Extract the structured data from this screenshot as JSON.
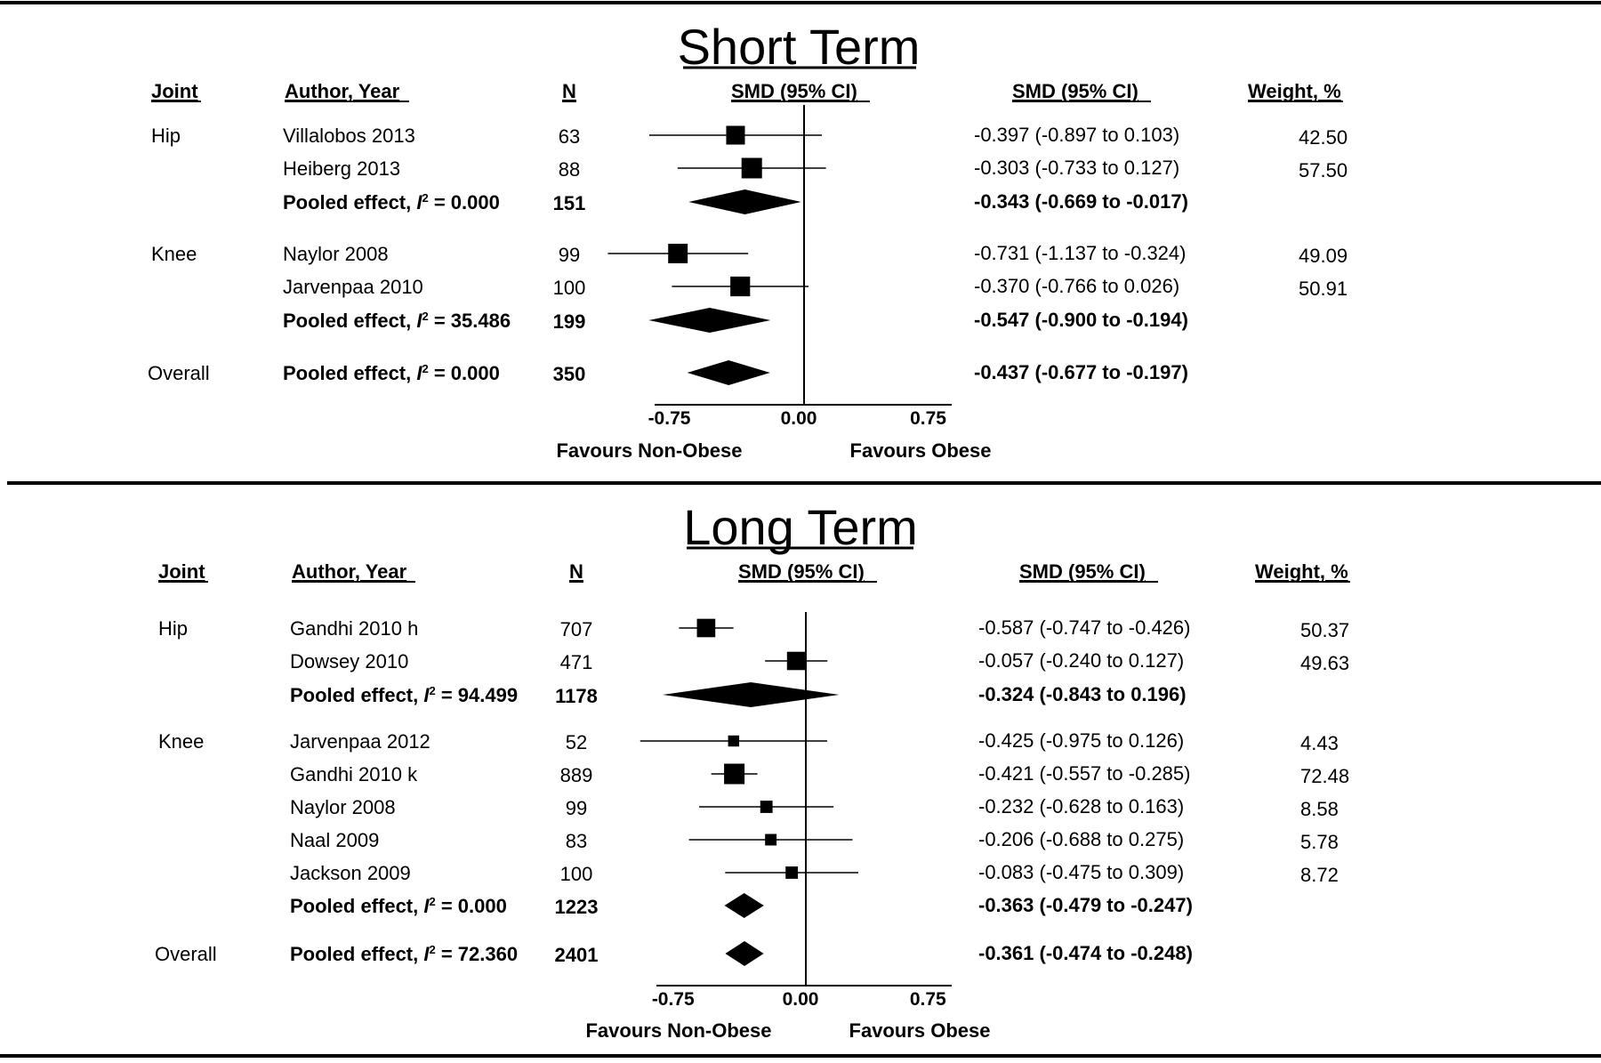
{
  "chart_data": [
    {
      "type": "forest",
      "title": "Short Term",
      "columns": {
        "joint": "Joint",
        "author": "Author, Year",
        "n": "N",
        "plot": "SMD (95% CI)",
        "ci": "SMD (95% CI)",
        "weight": "Weight, %"
      },
      "xlim": [
        -0.85,
        0.85
      ],
      "ticks": [
        "-0.75",
        "0.00",
        "0.75"
      ],
      "favours_left": "Favours Non-Obese",
      "favours_right": "Favours Obese",
      "rows": [
        {
          "joint": "Hip",
          "author": "Villalobos 2013",
          "n": "63",
          "smd": -0.397,
          "lo": -0.897,
          "hi": 0.103,
          "ci_text": "-0.397 (-0.897 to 0.103)",
          "weight": "42.50",
          "kind": "study"
        },
        {
          "joint": "",
          "author": "Heiberg 2013",
          "n": "88",
          "smd": -0.303,
          "lo": -0.733,
          "hi": 0.127,
          "ci_text": "-0.303 (-0.733 to 0.127)",
          "weight": "57.50",
          "kind": "study"
        },
        {
          "joint": "",
          "author": "Pooled effect, ",
          "i2": "0.000",
          "n": "151",
          "smd": -0.343,
          "lo": -0.669,
          "hi": -0.017,
          "ci_text": "-0.343 (-0.669 to -0.017)",
          "weight": "",
          "kind": "pooled"
        },
        {
          "joint": "Knee",
          "author": "Naylor 2008",
          "n": "99",
          "smd": -0.731,
          "lo": -1.137,
          "hi": -0.324,
          "ci_text": "-0.731 (-1.137 to -0.324)",
          "weight": "49.09",
          "kind": "study"
        },
        {
          "joint": "",
          "author": "Jarvenpaa 2010",
          "n": "100",
          "smd": -0.37,
          "lo": -0.766,
          "hi": 0.026,
          "ci_text": "-0.370 (-0.766 to 0.026)",
          "weight": "50.91",
          "kind": "study"
        },
        {
          "joint": "",
          "author": "Pooled effect, ",
          "i2": "35.486",
          "n": "199",
          "smd": -0.547,
          "lo": -0.9,
          "hi": -0.194,
          "ci_text": "-0.547 (-0.900 to -0.194)",
          "weight": "",
          "kind": "pooled"
        },
        {
          "joint": "Overall",
          "author": "Pooled effect, ",
          "i2": "0.000",
          "n": "350",
          "smd": -0.437,
          "lo": -0.677,
          "hi": -0.197,
          "ci_text": "-0.437 (-0.677 to -0.197)",
          "weight": "",
          "kind": "pooled"
        }
      ]
    },
    {
      "type": "forest",
      "title": "Long Term",
      "columns": {
        "joint": "Joint",
        "author": "Author, Year",
        "n": "N",
        "plot": "SMD (95% CI)",
        "ci": "SMD (95% CI)",
        "weight": "Weight, %"
      },
      "xlim": [
        -0.85,
        0.85
      ],
      "ticks": [
        "-0.75",
        "0.00",
        "0.75"
      ],
      "favours_left": "Favours Non-Obese",
      "favours_right": "Favours Obese",
      "rows": [
        {
          "joint": "Hip",
          "author": "Gandhi 2010 h",
          "n": "707",
          "smd": -0.587,
          "lo": -0.747,
          "hi": -0.426,
          "ci_text": "-0.587 (-0.747 to -0.426)",
          "weight": "50.37",
          "kind": "study"
        },
        {
          "joint": "",
          "author": "Dowsey 2010",
          "n": "471",
          "smd": -0.057,
          "lo": -0.24,
          "hi": 0.127,
          "ci_text": "-0.057 (-0.240 to 0.127)",
          "weight": "49.63",
          "kind": "study"
        },
        {
          "joint": "",
          "author": "Pooled effect, ",
          "i2": "94.499",
          "n": "1178",
          "smd": -0.324,
          "lo": -0.843,
          "hi": 0.196,
          "ci_text": "-0.324 (-0.843 to 0.196)",
          "weight": "",
          "kind": "pooled"
        },
        {
          "joint": "Knee",
          "author": "Jarvenpaa 2012",
          "n": "52",
          "smd": -0.425,
          "lo": -0.975,
          "hi": 0.126,
          "ci_text": "-0.425 (-0.975 to 0.126)",
          "weight": "4.43",
          "kind": "study"
        },
        {
          "joint": "",
          "author": "Gandhi 2010 k",
          "n": "889",
          "smd": -0.421,
          "lo": -0.557,
          "hi": -0.285,
          "ci_text": "-0.421 (-0.557 to -0.285)",
          "weight": "72.48",
          "kind": "study"
        },
        {
          "joint": "",
          "author": "Naylor 2008",
          "n": "99",
          "smd": -0.232,
          "lo": -0.628,
          "hi": 0.163,
          "ci_text": "-0.232 (-0.628 to 0.163)",
          "weight": "8.58",
          "kind": "study"
        },
        {
          "joint": "",
          "author": "Naal 2009",
          "n": "83",
          "smd": -0.206,
          "lo": -0.688,
          "hi": 0.275,
          "ci_text": "-0.206 (-0.688 to 0.275)",
          "weight": "5.78",
          "kind": "study"
        },
        {
          "joint": "",
          "author": "Jackson 2009",
          "n": "100",
          "smd": -0.083,
          "lo": -0.475,
          "hi": 0.309,
          "ci_text": "-0.083 (-0.475 to 0.309)",
          "weight": "8.72",
          "kind": "study"
        },
        {
          "joint": "",
          "author": "Pooled effect, ",
          "i2": "0.000",
          "n": "1223",
          "smd": -0.363,
          "lo": -0.479,
          "hi": -0.247,
          "ci_text": "-0.363 (-0.479 to -0.247)",
          "weight": "",
          "kind": "pooled"
        },
        {
          "joint": "Overall",
          "author": "Pooled effect, ",
          "i2": "72.360",
          "n": "2401",
          "smd": -0.361,
          "lo": -0.474,
          "hi": -0.248,
          "ci_text": "-0.361 (-0.474 to -0.248)",
          "weight": "",
          "kind": "pooled"
        }
      ]
    }
  ]
}
